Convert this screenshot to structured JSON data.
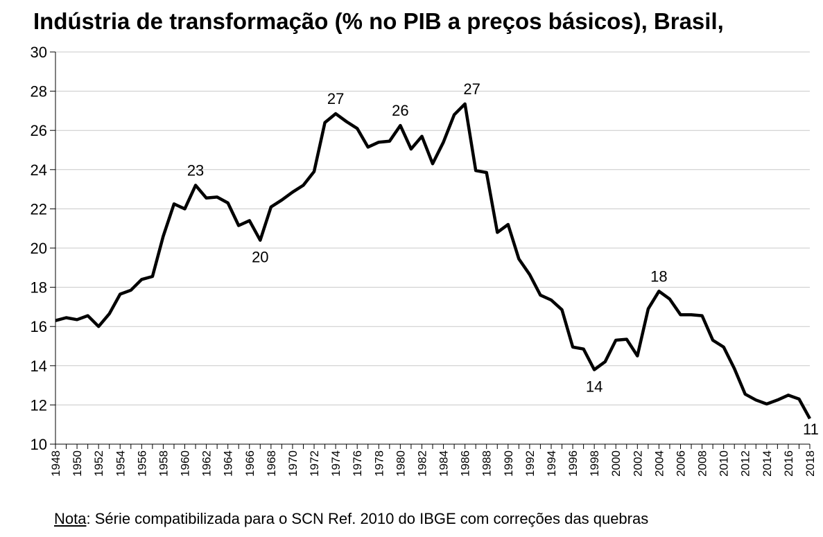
{
  "chart_data": {
    "type": "line",
    "title": "Indústria de transformação (% no PIB a preços básicos), Brasil,",
    "xlabel": "",
    "ylabel": "",
    "ylim": [
      10,
      30
    ],
    "yticks": [
      10,
      12,
      14,
      16,
      18,
      20,
      22,
      24,
      26,
      28,
      30
    ],
    "xlim": [
      1948,
      2018
    ],
    "xtick_labels": [
      "1948",
      "1950",
      "1952",
      "1954",
      "1956",
      "1958",
      "1960",
      "1962",
      "1964",
      "1966",
      "1968",
      "1970",
      "1972",
      "1974",
      "1976",
      "1978",
      "1980",
      "1982",
      "1984",
      "1986",
      "1988",
      "1990",
      "1992",
      "1994",
      "1996",
      "1998",
      "2000",
      "2002",
      "2004",
      "2006",
      "2008",
      "2010",
      "2012",
      "2014",
      "2016",
      "2018"
    ],
    "grid": "horizontal",
    "series": [
      {
        "color": "#000000",
        "x": [
          1948,
          1949,
          1950,
          1951,
          1952,
          1953,
          1954,
          1955,
          1956,
          1957,
          1958,
          1959,
          1960,
          1961,
          1962,
          1963,
          1964,
          1965,
          1966,
          1967,
          1968,
          1969,
          1970,
          1971,
          1972,
          1973,
          1974,
          1975,
          1976,
          1977,
          1978,
          1979,
          1980,
          1981,
          1982,
          1983,
          1984,
          1985,
          1986,
          1987,
          1988,
          1989,
          1990,
          1991,
          1992,
          1993,
          1994,
          1995,
          1996,
          1997,
          1998,
          1999,
          2000,
          2001,
          2002,
          2003,
          2004,
          2005,
          2006,
          2007,
          2008,
          2009,
          2010,
          2011,
          2012,
          2013,
          2014,
          2015,
          2016,
          2017,
          2018
        ],
        "y": [
          16.3,
          16.45,
          16.35,
          16.55,
          16.0,
          16.65,
          17.65,
          17.85,
          18.4,
          18.55,
          20.6,
          22.25,
          22.0,
          23.2,
          22.55,
          22.6,
          22.3,
          21.15,
          21.4,
          20.4,
          22.1,
          22.45,
          22.85,
          23.2,
          23.9,
          26.4,
          26.85,
          26.45,
          26.1,
          25.15,
          25.4,
          25.45,
          26.25,
          25.05,
          25.7,
          24.3,
          25.4,
          26.8,
          27.35,
          23.95,
          23.85,
          20.8,
          21.2,
          19.45,
          18.65,
          17.6,
          17.35,
          16.85,
          14.95,
          14.85,
          13.8,
          14.2,
          15.3,
          15.35,
          14.5,
          16.9,
          17.8,
          17.4,
          16.6,
          16.6,
          16.55,
          15.3,
          14.95,
          13.85,
          12.55,
          12.25,
          12.05,
          12.25,
          12.5,
          12.3,
          11.3
        ]
      }
    ],
    "annotations": [
      {
        "x": 1961,
        "y": 23.2,
        "text": "23",
        "pos": "above"
      },
      {
        "x": 1967,
        "y": 20.4,
        "text": "20",
        "pos": "below"
      },
      {
        "x": 1974,
        "y": 26.85,
        "text": "27",
        "pos": "above"
      },
      {
        "x": 1980,
        "y": 26.25,
        "text": "26",
        "pos": "above"
      },
      {
        "x": 1986,
        "y": 27.35,
        "text": "27",
        "pos": "above-right"
      },
      {
        "x": 1998,
        "y": 13.8,
        "text": "14",
        "pos": "below"
      },
      {
        "x": 2004,
        "y": 17.8,
        "text": "18",
        "pos": "above"
      },
      {
        "x": 2018,
        "y": 11.3,
        "text": "11",
        "pos": "right"
      }
    ]
  },
  "note": {
    "label": "Nota",
    "text": ": Série compatibilizada para o SCN Ref. 2010 do IBGE com correções das quebras"
  }
}
